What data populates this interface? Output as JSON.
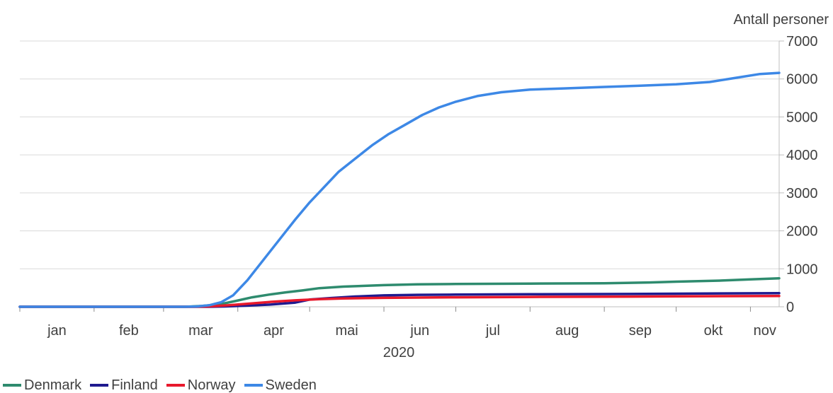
{
  "chart_data": {
    "type": "line",
    "title": "",
    "ylabel": "Antall personer",
    "xlabel": "2020",
    "ylim": [
      0,
      7000
    ],
    "yticks": [
      0,
      1000,
      2000,
      3000,
      4000,
      5000,
      6000,
      7000
    ],
    "months": [
      "jan",
      "feb",
      "mar",
      "apr",
      "mai",
      "jun",
      "jul",
      "aug",
      "sep",
      "okt",
      "nov"
    ],
    "x_range": [
      "2020-01-01",
      "2020-11-13"
    ],
    "grid": true,
    "legend_position": "bottom-left",
    "series": [
      {
        "name": "Denmark",
        "color": "#2e8b6e",
        "points": [
          [
            "2020-01-01",
            0
          ],
          [
            "2020-03-10",
            0
          ],
          [
            "2020-03-17",
            20
          ],
          [
            "2020-03-24",
            60
          ],
          [
            "2020-03-31",
            150
          ],
          [
            "2020-04-07",
            250
          ],
          [
            "2020-04-14",
            320
          ],
          [
            "2020-04-21",
            380
          ],
          [
            "2020-04-28",
            430
          ],
          [
            "2020-05-05",
            490
          ],
          [
            "2020-05-15",
            530
          ],
          [
            "2020-06-01",
            570
          ],
          [
            "2020-06-15",
            590
          ],
          [
            "2020-07-01",
            600
          ],
          [
            "2020-08-01",
            610
          ],
          [
            "2020-09-01",
            620
          ],
          [
            "2020-09-20",
            640
          ],
          [
            "2020-10-01",
            660
          ],
          [
            "2020-10-20",
            690
          ],
          [
            "2020-11-01",
            720
          ],
          [
            "2020-11-13",
            750
          ]
        ]
      },
      {
        "name": "Finland",
        "color": "#1f1a8f",
        "points": [
          [
            "2020-01-01",
            0
          ],
          [
            "2020-03-20",
            0
          ],
          [
            "2020-03-27",
            10
          ],
          [
            "2020-04-05",
            30
          ],
          [
            "2020-04-15",
            60
          ],
          [
            "2020-04-25",
            110
          ],
          [
            "2020-05-01",
            190
          ],
          [
            "2020-05-10",
            230
          ],
          [
            "2020-05-20",
            270
          ],
          [
            "2020-06-01",
            300
          ],
          [
            "2020-06-15",
            315
          ],
          [
            "2020-07-01",
            320
          ],
          [
            "2020-08-01",
            330
          ],
          [
            "2020-09-01",
            335
          ],
          [
            "2020-10-01",
            345
          ],
          [
            "2020-11-13",
            360
          ]
        ]
      },
      {
        "name": "Norway",
        "color": "#e8192c",
        "points": [
          [
            "2020-01-01",
            0
          ],
          [
            "2020-03-12",
            0
          ],
          [
            "2020-03-20",
            10
          ],
          [
            "2020-03-28",
            40
          ],
          [
            "2020-04-05",
            80
          ],
          [
            "2020-04-15",
            130
          ],
          [
            "2020-04-25",
            170
          ],
          [
            "2020-05-05",
            200
          ],
          [
            "2020-05-15",
            220
          ],
          [
            "2020-06-01",
            235
          ],
          [
            "2020-07-01",
            250
          ],
          [
            "2020-08-01",
            258
          ],
          [
            "2020-09-01",
            265
          ],
          [
            "2020-10-01",
            275
          ],
          [
            "2020-11-13",
            285
          ]
        ]
      },
      {
        "name": "Sweden",
        "color": "#3d88e6",
        "points": [
          [
            "2020-01-01",
            0
          ],
          [
            "2020-03-10",
            0
          ],
          [
            "2020-03-15",
            10
          ],
          [
            "2020-03-20",
            40
          ],
          [
            "2020-03-25",
            120
          ],
          [
            "2020-03-30",
            300
          ],
          [
            "2020-04-05",
            700
          ],
          [
            "2020-04-10",
            1100
          ],
          [
            "2020-04-15",
            1500
          ],
          [
            "2020-04-20",
            1900
          ],
          [
            "2020-04-25",
            2300
          ],
          [
            "2020-05-01",
            2750
          ],
          [
            "2020-05-07",
            3150
          ],
          [
            "2020-05-13",
            3550
          ],
          [
            "2020-05-20",
            3900
          ],
          [
            "2020-05-27",
            4250
          ],
          [
            "2020-06-03",
            4550
          ],
          [
            "2020-06-10",
            4800
          ],
          [
            "2020-06-17",
            5050
          ],
          [
            "2020-06-24",
            5250
          ],
          [
            "2020-07-01",
            5400
          ],
          [
            "2020-07-10",
            5550
          ],
          [
            "2020-07-20",
            5650
          ],
          [
            "2020-08-01",
            5720
          ],
          [
            "2020-08-15",
            5750
          ],
          [
            "2020-09-01",
            5790
          ],
          [
            "2020-09-15",
            5820
          ],
          [
            "2020-10-01",
            5860
          ],
          [
            "2020-10-15",
            5920
          ],
          [
            "2020-10-25",
            6020
          ],
          [
            "2020-11-05",
            6130
          ],
          [
            "2020-11-13",
            6160
          ]
        ]
      }
    ]
  }
}
